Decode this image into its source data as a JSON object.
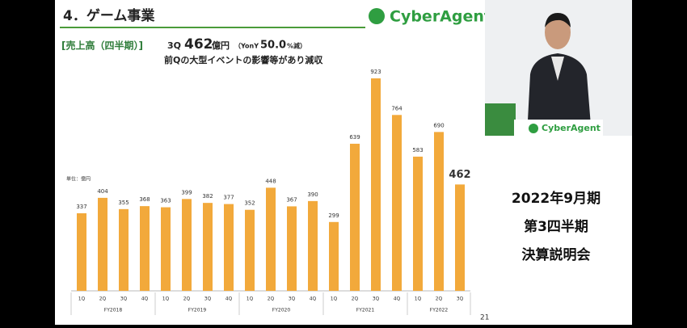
{
  "slide": {
    "section_title": "4．ゲーム事業",
    "logo": "CyberAgent",
    "subheading": "[売上高（四半期）]",
    "headline": {
      "quarter": "3Q",
      "amount": "462",
      "unit": "億円",
      "yoy_prefix": "（YonY",
      "yoy_value": "50.0",
      "yoy_suffix": "%減）"
    },
    "comment": "前Qの大型イベントの影響等があり減収",
    "page_number": "21"
  },
  "side_panel": {
    "lines": [
      "2022年9月期",
      "第3四半期",
      "決算説明会"
    ],
    "podium_logo": "CyberAgent"
  },
  "chart_data": {
    "type": "grouped-bar",
    "unit_label": "単位：億円",
    "color": "#f2a93b",
    "groups": [
      {
        "name": "FY2018",
        "categories": [
          "1Q",
          "2Q",
          "3Q",
          "4Q"
        ],
        "values": [
          337,
          404,
          355,
          368
        ]
      },
      {
        "name": "FY2019",
        "categories": [
          "1Q",
          "2Q",
          "3Q",
          "4Q"
        ],
        "values": [
          363,
          399,
          382,
          377
        ]
      },
      {
        "name": "FY2020",
        "categories": [
          "1Q",
          "2Q",
          "3Q",
          "4Q"
        ],
        "values": [
          352,
          448,
          367,
          390
        ]
      },
      {
        "name": "FY2021",
        "categories": [
          "1Q",
          "2Q",
          "3Q",
          "4Q"
        ],
        "values": [
          299,
          639,
          923,
          764
        ]
      },
      {
        "name": "FY2022",
        "categories": [
          "1Q",
          "2Q",
          "3Q"
        ],
        "values": [
          583,
          690,
          462
        ]
      }
    ]
  }
}
